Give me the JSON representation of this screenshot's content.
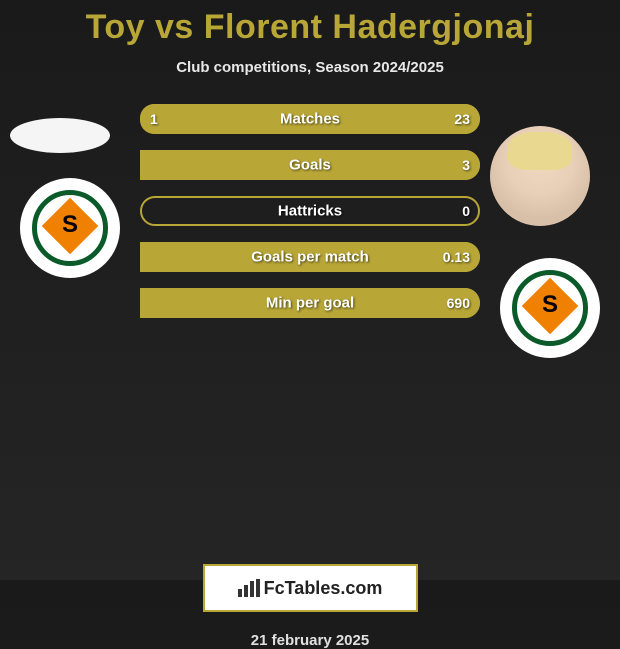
{
  "title": "Toy vs Florent Hadergjonaj",
  "subtitle": "Club competitions, Season 2024/2025",
  "date": "21 february 2025",
  "brand": "FcTables.com",
  "colors": {
    "title": "#b8a637",
    "bar_border": "#b8a637",
    "bar_fill": "#b8a637",
    "brand_border": "#b8a637",
    "background": "#1a1a1a"
  },
  "players": {
    "left": {
      "name": "Toy",
      "club": "Alanyaspor"
    },
    "right": {
      "name": "Florent Hadergjonaj",
      "club": "Alanyaspor"
    }
  },
  "stats": [
    {
      "label": "Matches",
      "left_val": "1",
      "right_val": "23",
      "left_pct": 4,
      "right_pct": 96
    },
    {
      "label": "Goals",
      "left_val": "",
      "right_val": "3",
      "left_pct": 0,
      "right_pct": 100
    },
    {
      "label": "Hattricks",
      "left_val": "",
      "right_val": "0",
      "left_pct": 0,
      "right_pct": 0
    },
    {
      "label": "Goals per match",
      "left_val": "",
      "right_val": "0.13",
      "left_pct": 0,
      "right_pct": 100
    },
    {
      "label": "Min per goal",
      "left_val": "",
      "right_val": "690",
      "left_pct": 0,
      "right_pct": 100
    }
  ]
}
